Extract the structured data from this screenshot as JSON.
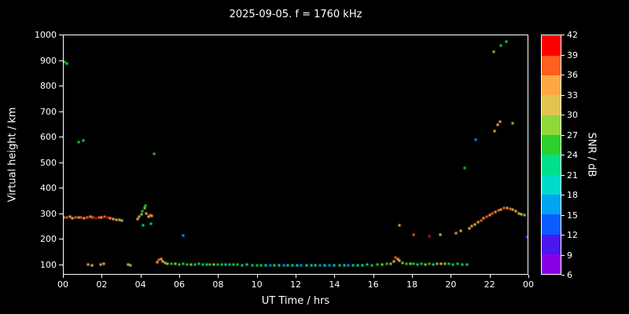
{
  "title": "2025-09-05. f = 1760 kHz",
  "chart_data": {
    "type": "scatter",
    "title": "2025-09-05. f = 1760 kHz",
    "xlabel": "UT Time / hrs",
    "ylabel": "Virtual height / km",
    "xlim": [
      0,
      24
    ],
    "ylim": [
      60,
      1000
    ],
    "grid": false,
    "background": "#000000",
    "axis_color": "#ffffff",
    "x_ticks": [
      0,
      2,
      4,
      6,
      8,
      10,
      12,
      14,
      16,
      18,
      20,
      22,
      24
    ],
    "x_tick_labels": [
      "00",
      "02",
      "04",
      "06",
      "08",
      "10",
      "12",
      "14",
      "16",
      "18",
      "20",
      "22",
      "00"
    ],
    "y_ticks": [
      100,
      200,
      300,
      400,
      500,
      600,
      700,
      800,
      900,
      1000
    ],
    "y_tick_labels": [
      "100",
      "200",
      "300",
      "400",
      "500",
      "600",
      "700",
      "800",
      "900",
      "1000"
    ],
    "colorbar": {
      "label": "SNR / dB",
      "min": 6,
      "max": 42,
      "ticks": [
        6,
        9,
        12,
        15,
        18,
        21,
        24,
        27,
        30,
        33,
        36,
        39,
        42
      ],
      "band_colors": [
        "#8a00e6",
        "#4a17f0",
        "#0b5cff",
        "#00a4f0",
        "#00dccc",
        "#00e08a",
        "#2ed02e",
        "#8fd838",
        "#e2c352",
        "#ffa843",
        "#ff5f1f",
        "#fb0000"
      ]
    },
    "points_format": [
      "ut_hours",
      "virtual_height_km",
      "snr_db"
    ],
    "points": [
      [
        0.05,
        285,
        33
      ],
      [
        0.2,
        283,
        36
      ],
      [
        0.35,
        286,
        33
      ],
      [
        0.5,
        281,
        30
      ],
      [
        0.65,
        283,
        36
      ],
      [
        0.8,
        285,
        33
      ],
      [
        0.95,
        283,
        36
      ],
      [
        1.1,
        281,
        33
      ],
      [
        1.25,
        284,
        36
      ],
      [
        1.4,
        287,
        33
      ],
      [
        1.55,
        285,
        36
      ],
      [
        1.7,
        282,
        39
      ],
      [
        1.85,
        285,
        36
      ],
      [
        2.0,
        283,
        33
      ],
      [
        2.15,
        286,
        36
      ],
      [
        2.3,
        284,
        39
      ],
      [
        2.45,
        281,
        33
      ],
      [
        2.6,
        277,
        30
      ],
      [
        2.75,
        274,
        33
      ],
      [
        2.9,
        276,
        30
      ],
      [
        3.05,
        272,
        27
      ],
      [
        3.85,
        278,
        30
      ],
      [
        3.95,
        286,
        33
      ],
      [
        4.05,
        296,
        27
      ],
      [
        4.1,
        310,
        24
      ],
      [
        4.15,
        252,
        18
      ],
      [
        4.2,
        322,
        27
      ],
      [
        4.25,
        330,
        24
      ],
      [
        4.3,
        301,
        33
      ],
      [
        4.4,
        288,
        30
      ],
      [
        4.5,
        293,
        36
      ],
      [
        4.6,
        289,
        33
      ],
      [
        4.55,
        259,
        21
      ],
      [
        0.1,
        893,
        24
      ],
      [
        0.22,
        886,
        21
      ],
      [
        0.8,
        578,
        24
      ],
      [
        1.05,
        585,
        21
      ],
      [
        4.7,
        532,
        24
      ],
      [
        1.3,
        100,
        33
      ],
      [
        1.5,
        98,
        30
      ],
      [
        1.95,
        100,
        33
      ],
      [
        2.1,
        102,
        30
      ],
      [
        3.35,
        100,
        30
      ],
      [
        3.5,
        98,
        27
      ],
      [
        4.85,
        108,
        33
      ],
      [
        4.95,
        118,
        36
      ],
      [
        5.05,
        122,
        33
      ],
      [
        5.15,
        112,
        30
      ],
      [
        5.25,
        106,
        27
      ],
      [
        5.4,
        104,
        27
      ],
      [
        5.6,
        102,
        24
      ],
      [
        5.8,
        103,
        27
      ],
      [
        6.0,
        101,
        24
      ],
      [
        6.2,
        102,
        21
      ],
      [
        6.4,
        100,
        24
      ],
      [
        6.6,
        101,
        27
      ],
      [
        6.8,
        100,
        24
      ],
      [
        7.0,
        102,
        21
      ],
      [
        7.2,
        101,
        24
      ],
      [
        7.4,
        100,
        21
      ],
      [
        7.6,
        99,
        24
      ],
      [
        7.8,
        100,
        27
      ],
      [
        8.0,
        101,
        24
      ],
      [
        8.2,
        100,
        21
      ],
      [
        8.4,
        99,
        18
      ],
      [
        8.6,
        100,
        24
      ],
      [
        8.8,
        99,
        21
      ],
      [
        9.0,
        100,
        24
      ],
      [
        9.25,
        98,
        21
      ],
      [
        9.5,
        99,
        18
      ],
      [
        9.75,
        98,
        21
      ],
      [
        10.0,
        97,
        24
      ],
      [
        10.2,
        98,
        21
      ],
      [
        10.45,
        97,
        18
      ],
      [
        10.7,
        98,
        15
      ],
      [
        10.9,
        97,
        21
      ],
      [
        11.15,
        98,
        18
      ],
      [
        11.4,
        97,
        15
      ],
      [
        11.6,
        96,
        18
      ],
      [
        11.85,
        97,
        21
      ],
      [
        12.1,
        96,
        18
      ],
      [
        12.3,
        97,
        15
      ],
      [
        12.55,
        96,
        18
      ],
      [
        12.8,
        97,
        21
      ],
      [
        13.0,
        96,
        18
      ],
      [
        13.25,
        97,
        15
      ],
      [
        13.5,
        96,
        18
      ],
      [
        13.75,
        97,
        15
      ],
      [
        14.0,
        96,
        18
      ],
      [
        14.25,
        97,
        21
      ],
      [
        14.5,
        98,
        18
      ],
      [
        14.7,
        97,
        15
      ],
      [
        14.95,
        98,
        18
      ],
      [
        15.2,
        97,
        21
      ],
      [
        15.45,
        98,
        18
      ],
      [
        15.7,
        99,
        21
      ],
      [
        15.95,
        98,
        24
      ],
      [
        16.2,
        100,
        24
      ],
      [
        16.45,
        101,
        27
      ],
      [
        16.7,
        102,
        24
      ],
      [
        16.9,
        104,
        27
      ],
      [
        17.05,
        112,
        30
      ],
      [
        17.15,
        128,
        36
      ],
      [
        17.25,
        122,
        33
      ],
      [
        17.35,
        114,
        30
      ],
      [
        17.5,
        107,
        27
      ],
      [
        17.7,
        104,
        24
      ],
      [
        17.9,
        103,
        27
      ],
      [
        18.1,
        102,
        24
      ],
      [
        18.3,
        101,
        21
      ],
      [
        18.5,
        102,
        24
      ],
      [
        18.7,
        101,
        27
      ],
      [
        18.9,
        102,
        24
      ],
      [
        19.1,
        101,
        21
      ],
      [
        19.3,
        102,
        27
      ],
      [
        19.5,
        104,
        30
      ],
      [
        19.7,
        103,
        27
      ],
      [
        19.9,
        102,
        24
      ],
      [
        20.1,
        101,
        21
      ],
      [
        20.35,
        102,
        24
      ],
      [
        20.6,
        101,
        21
      ],
      [
        20.85,
        100,
        18
      ],
      [
        6.2,
        214,
        15
      ],
      [
        17.35,
        252,
        33
      ],
      [
        18.1,
        216,
        36
      ],
      [
        18.9,
        212,
        39
      ],
      [
        19.45,
        218,
        30
      ],
      [
        20.25,
        224,
        33
      ],
      [
        20.5,
        232,
        30
      ],
      [
        20.95,
        242,
        30
      ],
      [
        21.1,
        250,
        33
      ],
      [
        21.25,
        258,
        30
      ],
      [
        21.4,
        266,
        33
      ],
      [
        21.55,
        272,
        36
      ],
      [
        21.7,
        280,
        33
      ],
      [
        21.85,
        288,
        36
      ],
      [
        22.0,
        294,
        33
      ],
      [
        22.15,
        300,
        36
      ],
      [
        22.3,
        306,
        33
      ],
      [
        22.45,
        312,
        36
      ],
      [
        22.6,
        316,
        33
      ],
      [
        22.75,
        320,
        36
      ],
      [
        22.9,
        322,
        33
      ],
      [
        23.05,
        318,
        36
      ],
      [
        23.2,
        314,
        33
      ],
      [
        23.35,
        308,
        30
      ],
      [
        23.5,
        300,
        33
      ],
      [
        23.65,
        296,
        30
      ],
      [
        23.8,
        292,
        27
      ],
      [
        20.7,
        478,
        24
      ],
      [
        21.3,
        588,
        15
      ],
      [
        22.25,
        622,
        33
      ],
      [
        22.4,
        648,
        30
      ],
      [
        22.55,
        658,
        33
      ],
      [
        23.2,
        652,
        27
      ],
      [
        22.2,
        932,
        27
      ],
      [
        22.6,
        958,
        24
      ],
      [
        22.85,
        972,
        21
      ],
      [
        23.9,
        206,
        12
      ]
    ]
  }
}
